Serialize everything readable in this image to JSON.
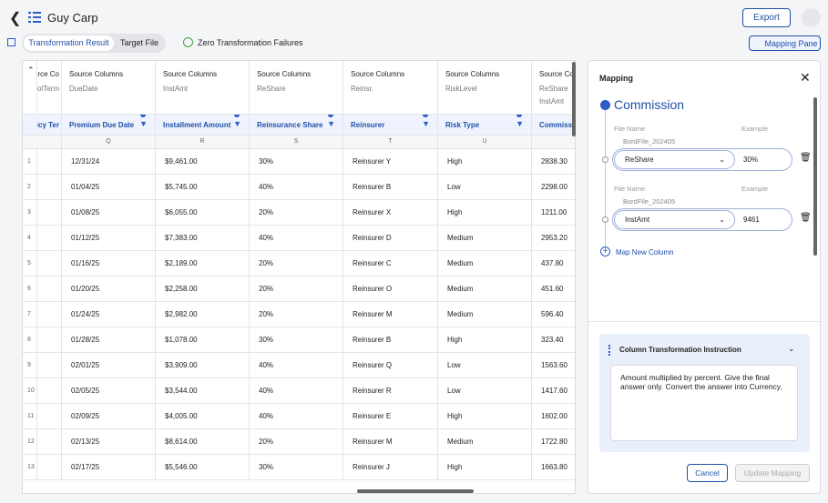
{
  "header": {
    "title": "Guy Carp",
    "export": "Export"
  },
  "tabs": [
    "Transformation Result",
    "Target File"
  ],
  "status": "Zero Transformation Failures",
  "mapping_pane_button": "Mapping Pane",
  "table": {
    "columns": [
      {
        "label": "ource Co",
        "source": [
          "olTerm"
        ],
        "target": "olicy Ter",
        "letter": null
      },
      {
        "label": "Source Columns",
        "source": [
          "DueDate"
        ],
        "target": "Premium Due Date",
        "letter": "Q"
      },
      {
        "label": "Source Columns",
        "source": [
          "InstAmt"
        ],
        "target": "Installment Amount",
        "letter": "R"
      },
      {
        "label": "Source Columns",
        "source": [
          "ReShare"
        ],
        "target": "Reinsurance Share",
        "letter": "S"
      },
      {
        "label": "Source Columns",
        "source": [
          "Reinsr."
        ],
        "target": "Reinsurer",
        "letter": "T"
      },
      {
        "label": "Source Columns",
        "source": [
          "RiskLevel"
        ],
        "target": "Risk Type",
        "letter": "U"
      },
      {
        "label": "Source Co",
        "source": [
          "ReShare",
          "InstAmt"
        ],
        "target": "Commissi",
        "letter": null
      }
    ],
    "rows": [
      [
        "1",
        "",
        "12/31/24",
        "$9,461.00",
        "30%",
        "Reinsurer Y",
        "High",
        "2838.30"
      ],
      [
        "2",
        "",
        "01/04/25",
        "$5,745.00",
        "40%",
        "Reinsurer B",
        "Low",
        "2298.00"
      ],
      [
        "3",
        "",
        "01/08/25",
        "$6,055.00",
        "20%",
        "Reinsurer X",
        "High",
        "1211.00"
      ],
      [
        "4",
        "",
        "01/12/25",
        "$7,383.00",
        "40%",
        "Reinsurer D",
        "Medium",
        "2953.20"
      ],
      [
        "5",
        "",
        "01/16/25",
        "$2,189.00",
        "20%",
        "Reinsurer C",
        "Medium",
        "437.80"
      ],
      [
        "6",
        "",
        "01/20/25",
        "$2,258.00",
        "20%",
        "Reinsurer O",
        "Medium",
        "451.60"
      ],
      [
        "7",
        "",
        "01/24/25",
        "$2,982.00",
        "20%",
        "Reinsurer M",
        "Medium",
        "596.40"
      ],
      [
        "8",
        "",
        "01/28/25",
        "$1,078.00",
        "30%",
        "Reinsurer B",
        "High",
        "323.40"
      ],
      [
        "9",
        "",
        "02/01/25",
        "$3,909.00",
        "40%",
        "Reinsurer Q",
        "Low",
        "1563.60"
      ],
      [
        "10",
        "",
        "02/05/25",
        "$3,544.00",
        "40%",
        "Reinsurer R",
        "Low",
        "1417.60"
      ],
      [
        "11",
        "",
        "02/09/25",
        "$4,005.00",
        "40%",
        "Reinsurer E",
        "High",
        "1602.00"
      ],
      [
        "12",
        "",
        "02/13/25",
        "$8,614.00",
        "20%",
        "Reinsurer M",
        "Medium",
        "1722.80"
      ],
      [
        "13",
        "",
        "02/17/25",
        "$5,546.00",
        "30%",
        "Reinsurer J",
        "High",
        "1663.80"
      ]
    ]
  },
  "mapping": {
    "title": "Mapping",
    "target": "Commission",
    "file_name_label": "File Name",
    "example_label": "Example",
    "entries": [
      {
        "file": "BordFile_202405",
        "column": "ReShare",
        "example": "30%"
      },
      {
        "file": "BordFile_202405",
        "column": "InstAmt",
        "example": "9461"
      }
    ],
    "add": "Map New Column",
    "instruction_title": "Column Transformation Instruction",
    "instruction": "Amount multiplied by percent. Give the final answer only. Convert the answer into Currency.",
    "cancel": "Cancel",
    "update": "Update Mapping"
  }
}
